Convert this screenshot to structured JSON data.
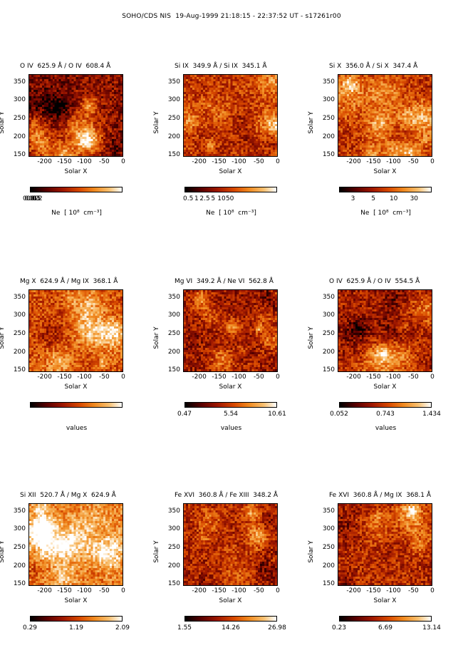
{
  "title": "SOHO/CDS NIS  19-Aug-1999 21:18:15 - 22:37:52 UT - s17261r00",
  "axis": {
    "xlabel": "Solar X",
    "ylabel": "Solar Y",
    "xticks": [
      "-200",
      "-150",
      "-100",
      "-50",
      "0"
    ],
    "yticks": [
      "350",
      "300",
      "250",
      "200",
      "150"
    ]
  },
  "colormap": [
    "#000000",
    "#5a0000",
    "#a01800",
    "#d84a00",
    "#f08a20",
    "#f8c070",
    "#ffffff"
  ],
  "panels": [
    {
      "title": "O IV  625.9 Å / O IV  608.4 Å",
      "cbar_label": "Ne  [ 10⁸  cm⁻³]",
      "cbar_ticks": [
        "0.01",
        "0.02",
        "0.05",
        "0.1",
        "0.2"
      ],
      "seed": 11
    },
    {
      "title": "Si IX  349.9 Å / Si IX  345.1 Å",
      "cbar_label": "Ne  [ 10⁸  cm⁻³]",
      "cbar_ticks": [
        "0.5",
        "1",
        "2.5",
        "5",
        "10",
        "50"
      ],
      "seed": 23
    },
    {
      "title": "Si X  356.0 Å / Si X  347.4 Å",
      "cbar_label": "Ne  [ 10⁸  cm⁻³]",
      "cbar_ticks": [
        "3",
        "5",
        "10",
        "30"
      ],
      "seed": 37
    },
    {
      "title": "Mg X  624.9 Å / Mg IX  368.1 Å",
      "cbar_label": "values",
      "cbar_ticks": [],
      "seed": 41
    },
    {
      "title": "Mg VI  349.2 Å / Ne VI  562.8 Å",
      "cbar_label": "values",
      "cbar_ticks": [
        "0.47",
        "5.54",
        "10.61"
      ],
      "seed": 53
    },
    {
      "title": "O IV  625.9 Å / O IV  554.5 Å",
      "cbar_label": "values",
      "cbar_ticks": [
        "0.052",
        "0.743",
        "1.434"
      ],
      "seed": 67
    },
    {
      "title": "Si XII  520.7 Å / Mg X  624.9 Å",
      "cbar_label": "",
      "cbar_ticks": [
        "0.29",
        "1.19",
        "2.09"
      ],
      "seed": 71
    },
    {
      "title": "Fe XVI  360.8 Å / Fe XIII  348.2 Å",
      "cbar_label": "",
      "cbar_ticks": [
        "1.55",
        "14.26",
        "26.98"
      ],
      "seed": 83
    },
    {
      "title": "Fe XVI  360.8 Å / Mg IX  368.1 Å",
      "cbar_label": "",
      "cbar_ticks": [
        "0.23",
        "6.69",
        "13.14"
      ],
      "seed": 97
    }
  ]
}
